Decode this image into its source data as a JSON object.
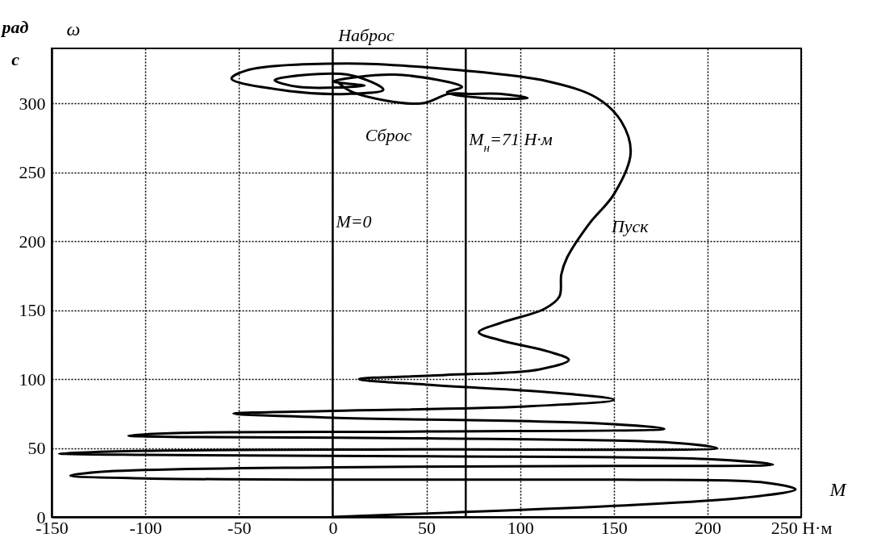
{
  "chart_data": {
    "type": "line",
    "xlabel": "M",
    "ylabel": "ω",
    "xlim": [
      -150,
      250
    ],
    "ylim": [
      0,
      340
    ],
    "xticks": [
      -150,
      -100,
      -50,
      0,
      50,
      100,
      150,
      200,
      {
        "value": 250,
        "label": "250 Н·м"
      }
    ],
    "yticks": [
      0,
      50,
      100,
      150,
      200,
      250,
      300
    ],
    "grid": true,
    "marker": "none",
    "line_style": "solid",
    "legend": false,
    "series": [
      {
        "color": "#000000",
        "x": [
          0,
          60,
          150,
          220,
          247,
          230,
          150,
          0,
          -100,
          -140,
          -120,
          0,
          150,
          235,
          200,
          50,
          -100,
          -146,
          -100,
          50,
          205,
          180,
          50,
          -80,
          -109,
          -80,
          50,
          177,
          140,
          0,
          -53,
          0,
          100,
          150,
          120,
          50,
          14,
          60,
          110,
          126,
          115,
          90,
          78,
          90,
          113,
          121,
          122,
          125,
          137,
          150,
          159,
          154,
          141,
          115,
          69,
          7,
          -46,
          -54,
          -23,
          8,
          27,
          8,
          -31,
          -18,
          17,
          4,
          0,
          33,
          69,
          61,
          80,
          104,
          90,
          73,
          62,
          47,
          11,
          3
        ],
        "values": [
          0,
          3,
          8,
          14,
          20,
          25,
          27,
          27,
          28,
          30,
          33,
          36,
          37,
          38,
          42,
          44,
          45,
          46,
          48,
          49,
          50,
          54,
          57,
          58,
          59,
          61,
          62,
          64,
          68,
          72,
          75,
          77,
          80,
          85,
          90,
          96,
          100,
          103,
          107,
          114,
          120,
          128,
          134,
          141,
          151,
          160,
          176,
          188,
          213,
          234,
          264,
          287,
          304,
          316,
          324,
          329,
          324,
          318,
          309,
          307,
          310,
          321,
          317,
          312,
          313,
          315,
          316,
          321,
          312,
          308,
          304,
          304,
          307,
          307,
          307,
          300,
          308,
          315
        ]
      }
    ],
    "ref_lines": [
      {
        "axis": "x",
        "value": 0,
        "label": "M=0"
      },
      {
        "axis": "x",
        "value": 71,
        "label": "M$_{н}$=71 Н·м"
      }
    ],
    "annotations": [
      {
        "text": "Наброс",
        "x": 33,
        "y": 321
      },
      {
        "text": "Сброс",
        "x": 47,
        "y": 300
      },
      {
        "text": "Пуск",
        "x": 150,
        "y": 234
      },
      "рад",
      "с"
    ]
  }
}
